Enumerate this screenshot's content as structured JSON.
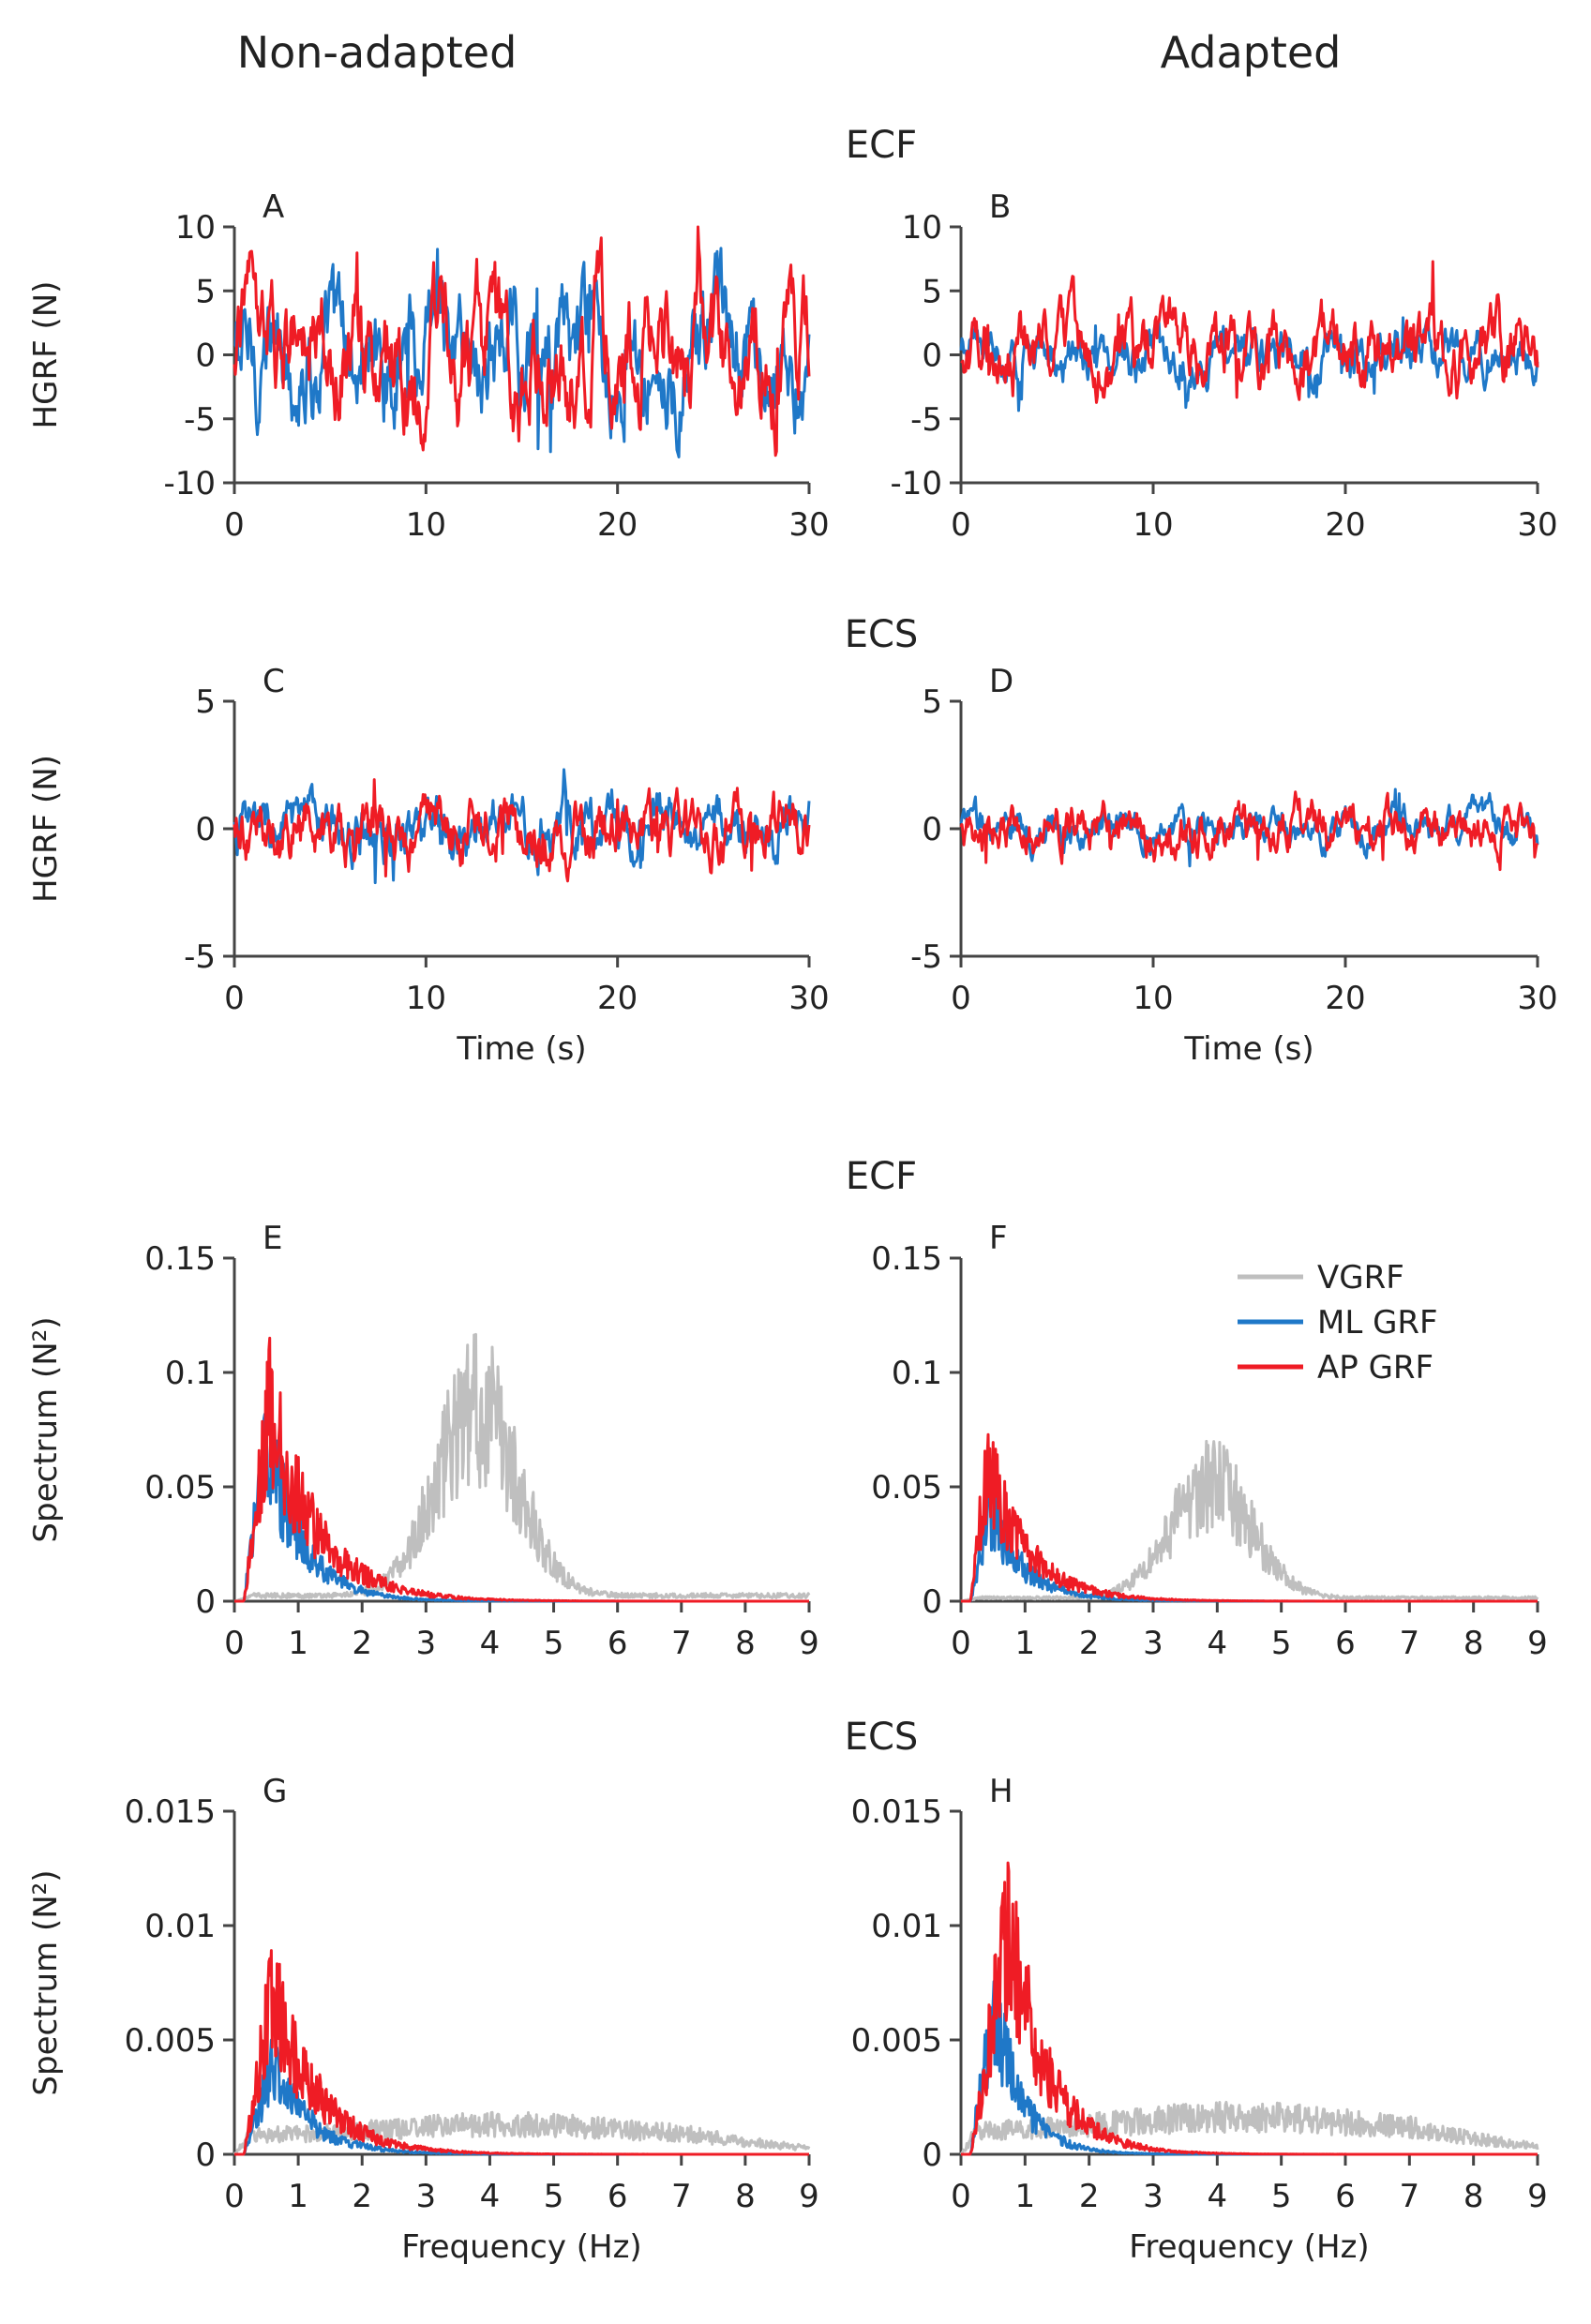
{
  "figure": {
    "column_titles": [
      "Non-adapted",
      "Adapted"
    ],
    "section_titles": [
      "ECF",
      "ECS",
      "ECF",
      "ECS"
    ],
    "legend": [
      {
        "name": "VGRF",
        "color": "#bfbfbf"
      },
      {
        "name": "ML GRF",
        "color": "#1f78c8"
      },
      {
        "name": "AP GRF",
        "color": "#ef1c25"
      }
    ]
  },
  "chart_data": [
    {
      "panel": "A",
      "type": "line",
      "title": "A",
      "xlabel": "",
      "ylabel": "HGRF (N)",
      "xlim": [
        0,
        30
      ],
      "ylim": [
        -10,
        10
      ],
      "xticks": [
        0,
        10,
        20,
        30
      ],
      "yticks": [
        -10,
        -5,
        0,
        5,
        10
      ],
      "series": [
        {
          "name": "ML GRF",
          "color": "#1f78c8",
          "amplitude": 5
        },
        {
          "name": "AP GRF",
          "color": "#ef1c25",
          "amplitude": 5
        }
      ]
    },
    {
      "panel": "B",
      "type": "line",
      "title": "B",
      "xlabel": "",
      "ylabel": "",
      "xlim": [
        0,
        30
      ],
      "ylim": [
        -10,
        10
      ],
      "xticks": [
        0,
        10,
        20,
        30
      ],
      "yticks": [
        -10,
        -5,
        0,
        5,
        10
      ],
      "series": [
        {
          "name": "ML GRF",
          "color": "#1f78c8",
          "amplitude": 2
        },
        {
          "name": "AP GRF",
          "color": "#ef1c25",
          "amplitude": 3
        }
      ]
    },
    {
      "panel": "C",
      "type": "line",
      "title": "C",
      "xlabel": "Time (s)",
      "ylabel": "HGRF (N)",
      "xlim": [
        0,
        30
      ],
      "ylim": [
        -5,
        5
      ],
      "xticks": [
        0,
        10,
        20,
        30
      ],
      "yticks": [
        -5,
        0,
        5
      ],
      "series": [
        {
          "name": "ML GRF",
          "color": "#1f78c8",
          "amplitude": 1.2
        },
        {
          "name": "AP GRF",
          "color": "#ef1c25",
          "amplitude": 1.3
        }
      ]
    },
    {
      "panel": "D",
      "type": "line",
      "title": "D",
      "xlabel": "Time (s)",
      "ylabel": "",
      "xlim": [
        0,
        30
      ],
      "ylim": [
        -5,
        5
      ],
      "xticks": [
        0,
        10,
        20,
        30
      ],
      "yticks": [
        -5,
        0,
        5
      ],
      "series": [
        {
          "name": "ML GRF",
          "color": "#1f78c8",
          "amplitude": 0.8
        },
        {
          "name": "AP GRF",
          "color": "#ef1c25",
          "amplitude": 1.0
        }
      ]
    },
    {
      "panel": "E",
      "type": "line",
      "title": "E",
      "xlabel": "",
      "ylabel": "Spectrum (N²)",
      "xlim": [
        0,
        9
      ],
      "ylim": [
        0,
        0.15
      ],
      "xticks": [
        0,
        1,
        2,
        3,
        4,
        5,
        6,
        7,
        8,
        9
      ],
      "yticks": [
        0,
        0.05,
        0.1,
        0.15
      ],
      "ytick_labels": [
        "0",
        "0.05",
        "0.1",
        "0.15"
      ],
      "series": [
        {
          "name": "VGRF",
          "color": "#bfbfbf",
          "shape": "hump",
          "peak_x": 3.8,
          "peak_y": 0.075,
          "width": 0.9
        },
        {
          "name": "ML GRF",
          "color": "#1f78c8",
          "shape": "decay",
          "peak_x": 0.5,
          "peak_y": 0.065,
          "decay": 0.55
        },
        {
          "name": "AP GRF",
          "color": "#ef1c25",
          "shape": "decay",
          "peak_x": 0.55,
          "peak_y": 0.075,
          "decay": 0.75
        }
      ]
    },
    {
      "panel": "F",
      "type": "line",
      "title": "F",
      "xlabel": "",
      "ylabel": "",
      "xlim": [
        0,
        9
      ],
      "ylim": [
        0,
        0.15
      ],
      "xticks": [
        0,
        1,
        2,
        3,
        4,
        5,
        6,
        7,
        8,
        9
      ],
      "yticks": [
        0,
        0.05,
        0.1,
        0.15
      ],
      "ytick_labels": [
        "0",
        "0.05",
        "0.1",
        "0.15"
      ],
      "series": [
        {
          "name": "VGRF",
          "color": "#bfbfbf",
          "shape": "hump",
          "peak_x": 3.9,
          "peak_y": 0.045,
          "width": 0.9
        },
        {
          "name": "ML GRF",
          "color": "#1f78c8",
          "shape": "decay",
          "peak_x": 0.45,
          "peak_y": 0.035,
          "decay": 0.55
        },
        {
          "name": "AP GRF",
          "color": "#ef1c25",
          "shape": "decay",
          "peak_x": 0.4,
          "peak_y": 0.055,
          "decay": 0.65
        }
      ]
    },
    {
      "panel": "G",
      "type": "line",
      "title": "G",
      "xlabel": "Frequency (Hz)",
      "ylabel": "Spectrum (N²)",
      "xlim": [
        0,
        9
      ],
      "ylim": [
        0,
        0.015
      ],
      "xticks": [
        0,
        1,
        2,
        3,
        4,
        5,
        6,
        7,
        8,
        9
      ],
      "yticks": [
        0,
        0.005,
        0.01,
        0.015
      ],
      "ytick_labels": [
        "0",
        "0.005",
        "0.01",
        "0.015"
      ],
      "series": [
        {
          "name": "VGRF",
          "color": "#bfbfbf",
          "shape": "flat",
          "peak_x": 4.2,
          "peak_y": 0.0012,
          "width": 2.5
        },
        {
          "name": "ML GRF",
          "color": "#1f78c8",
          "shape": "decay",
          "peak_x": 0.6,
          "peak_y": 0.0035,
          "decay": 0.6
        },
        {
          "name": "AP GRF",
          "color": "#ef1c25",
          "shape": "decay",
          "peak_x": 0.6,
          "peak_y": 0.0065,
          "decay": 0.7
        }
      ]
    },
    {
      "panel": "H",
      "type": "line",
      "title": "H",
      "xlabel": "Frequency (Hz)",
      "ylabel": "",
      "xlim": [
        0,
        9
      ],
      "ylim": [
        0,
        0.015
      ],
      "xticks": [
        0,
        1,
        2,
        3,
        4,
        5,
        6,
        7,
        8,
        9
      ],
      "yticks": [
        0,
        0.005,
        0.01,
        0.015
      ],
      "ytick_labels": [
        "0",
        "0.005",
        "0.01",
        "0.015"
      ],
      "series": [
        {
          "name": "VGRF",
          "color": "#bfbfbf",
          "shape": "flat",
          "peak_x": 4.3,
          "peak_y": 0.0015,
          "width": 2.5
        },
        {
          "name": "ML GRF",
          "color": "#1f78c8",
          "shape": "decay",
          "peak_x": 0.5,
          "peak_y": 0.006,
          "decay": 0.45
        },
        {
          "name": "AP GRF",
          "color": "#ef1c25",
          "shape": "decay",
          "peak_x": 0.75,
          "peak_y": 0.009,
          "decay": 0.6
        }
      ]
    }
  ]
}
